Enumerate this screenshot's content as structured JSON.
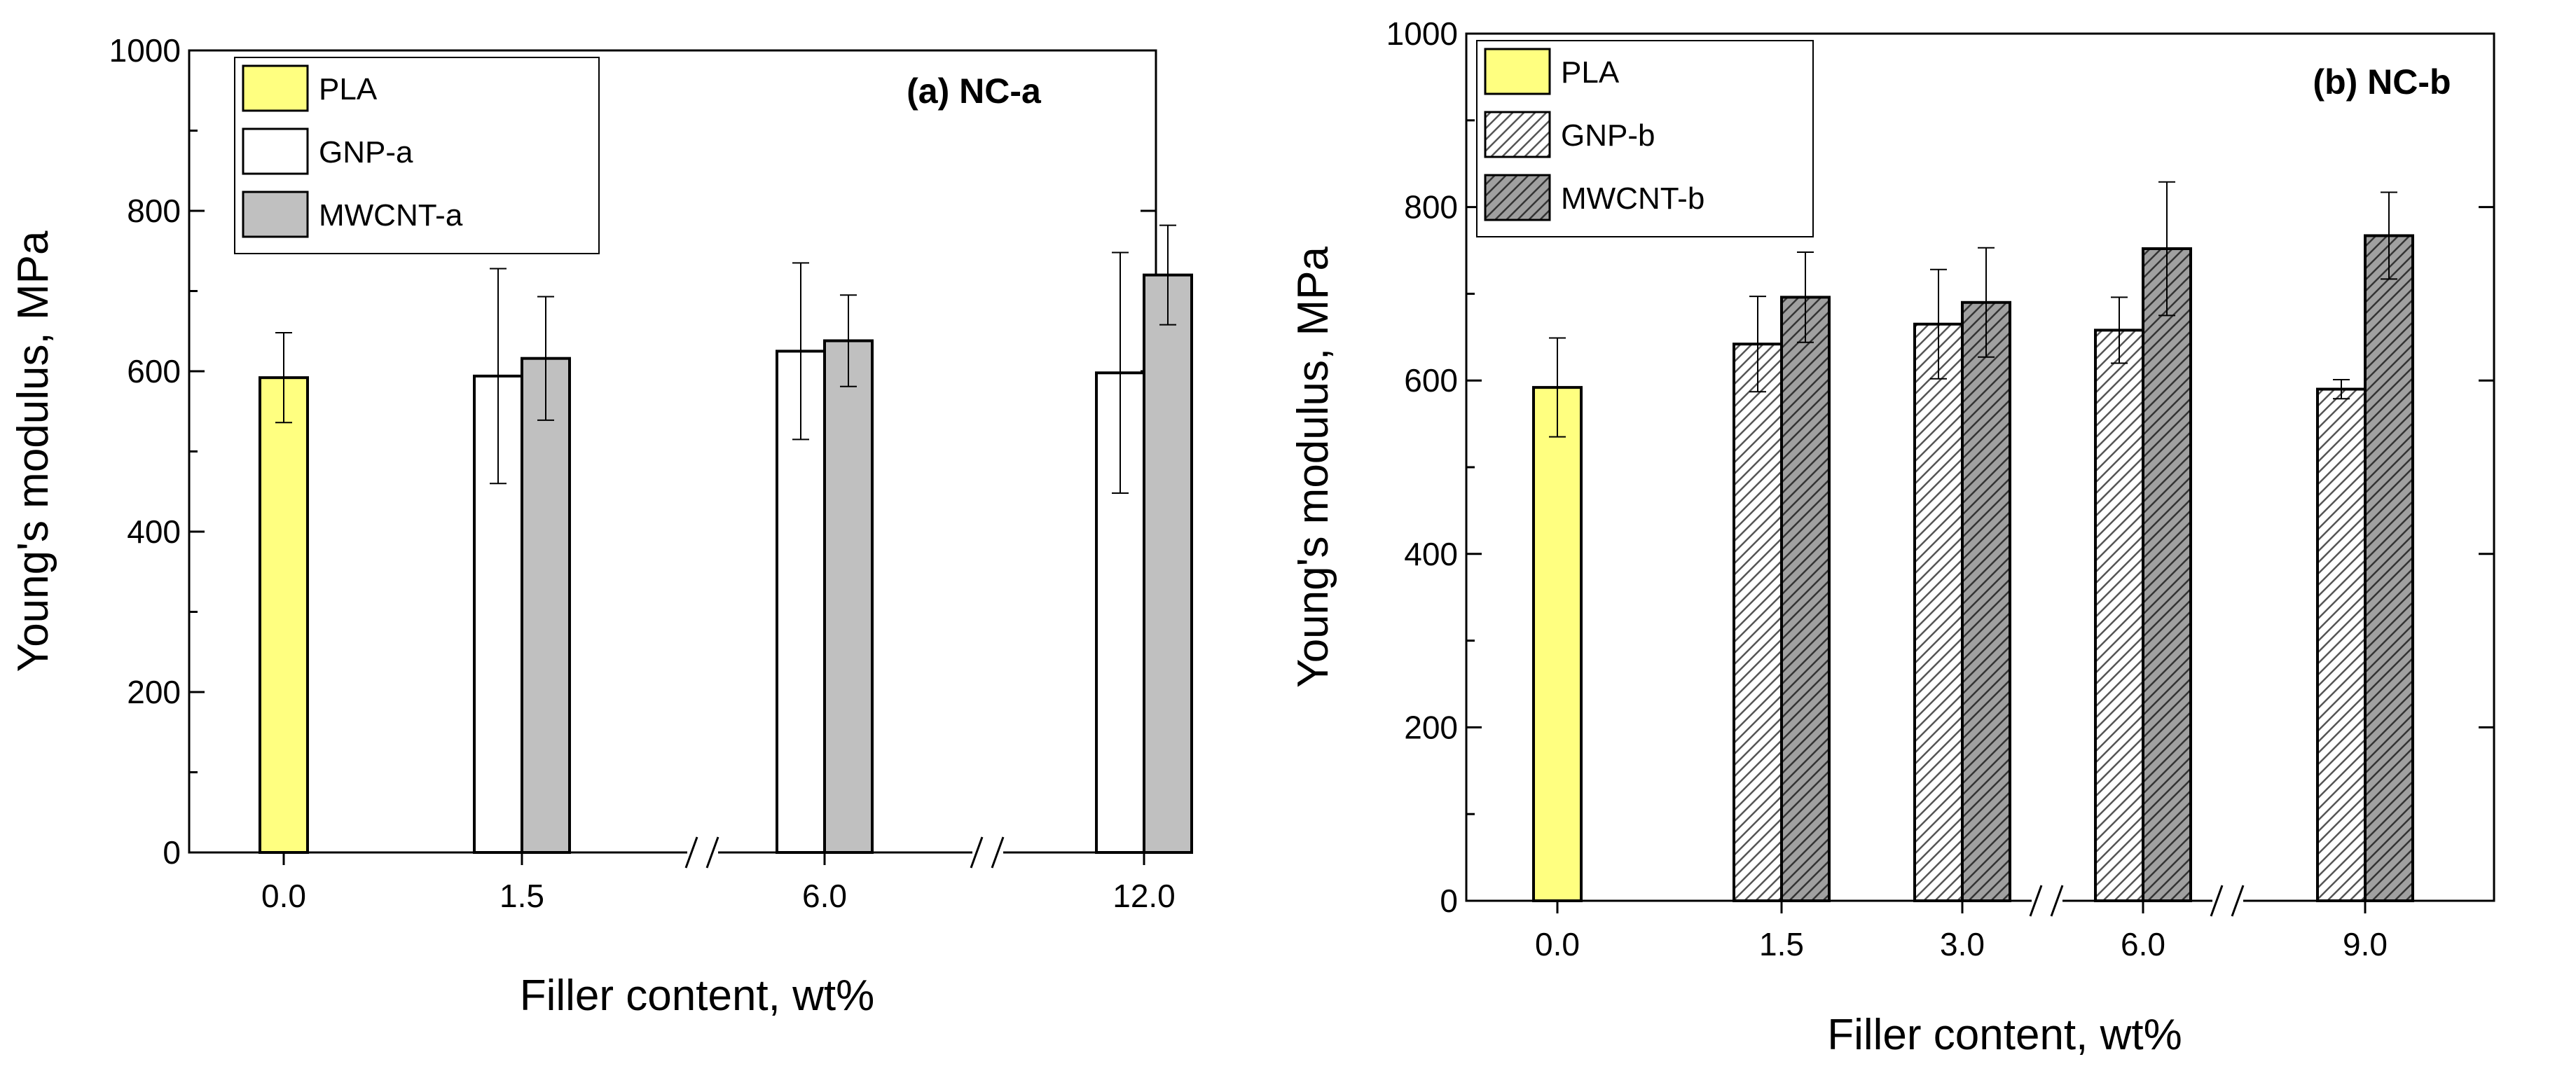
{
  "chart_data": [
    {
      "type": "bar",
      "title": "(a) NC-a",
      "xlabel": "Filler content, wt%",
      "ylabel": "Young's modulus, MPa",
      "ylim": [
        0,
        1000
      ],
      "yticks": [
        "0",
        "200",
        "400",
        "600",
        "800",
        "1000"
      ],
      "categories": [
        "0.0",
        "1.5",
        "6.0",
        "12.0"
      ],
      "axis_breaks_after": [
        "1.5",
        "6.0"
      ],
      "series": [
        {
          "name": "PLA",
          "color": "#ffff80",
          "pattern": "solid",
          "values": [
            592,
            null,
            null,
            null
          ],
          "errors": [
            56,
            null,
            null,
            null
          ]
        },
        {
          "name": "GNP-a",
          "color": "#ffffff",
          "pattern": "solid",
          "values": [
            null,
            594,
            625,
            598
          ],
          "errors": [
            null,
            134,
            110,
            150
          ]
        },
        {
          "name": "MWCNT-a",
          "color": "#c0c0c0",
          "pattern": "solid",
          "values": [
            null,
            616,
            638,
            720
          ],
          "errors": [
            null,
            77,
            57,
            62
          ]
        }
      ],
      "legend_position": "top-left"
    },
    {
      "type": "bar",
      "title": "(b) NC-b",
      "xlabel": "Filler content, wt%",
      "ylabel": "Young's modulus, MPa",
      "ylim": [
        0,
        1000
      ],
      "yticks": [
        "0",
        "200",
        "400",
        "600",
        "800",
        "1000"
      ],
      "categories": [
        "0.0",
        "1.5",
        "3.0",
        "6.0",
        "9.0"
      ],
      "axis_breaks_after": [
        "3.0",
        "6.0"
      ],
      "series": [
        {
          "name": "PLA",
          "color": "#ffff80",
          "pattern": "solid",
          "values": [
            592,
            null,
            null,
            null,
            null
          ],
          "errors": [
            57,
            null,
            null,
            null,
            null
          ]
        },
        {
          "name": "GNP-b",
          "color": "#ffffff",
          "pattern": "hatch",
          "values": [
            null,
            642,
            665,
            658,
            590
          ],
          "errors": [
            null,
            55,
            63,
            38,
            11
          ]
        },
        {
          "name": "MWCNT-b",
          "color": "#a0a0a0",
          "pattern": "hatch",
          "values": [
            null,
            696,
            690,
            752,
            767
          ],
          "errors": [
            null,
            52,
            63,
            77,
            50
          ]
        }
      ],
      "legend_position": "top-left"
    }
  ]
}
